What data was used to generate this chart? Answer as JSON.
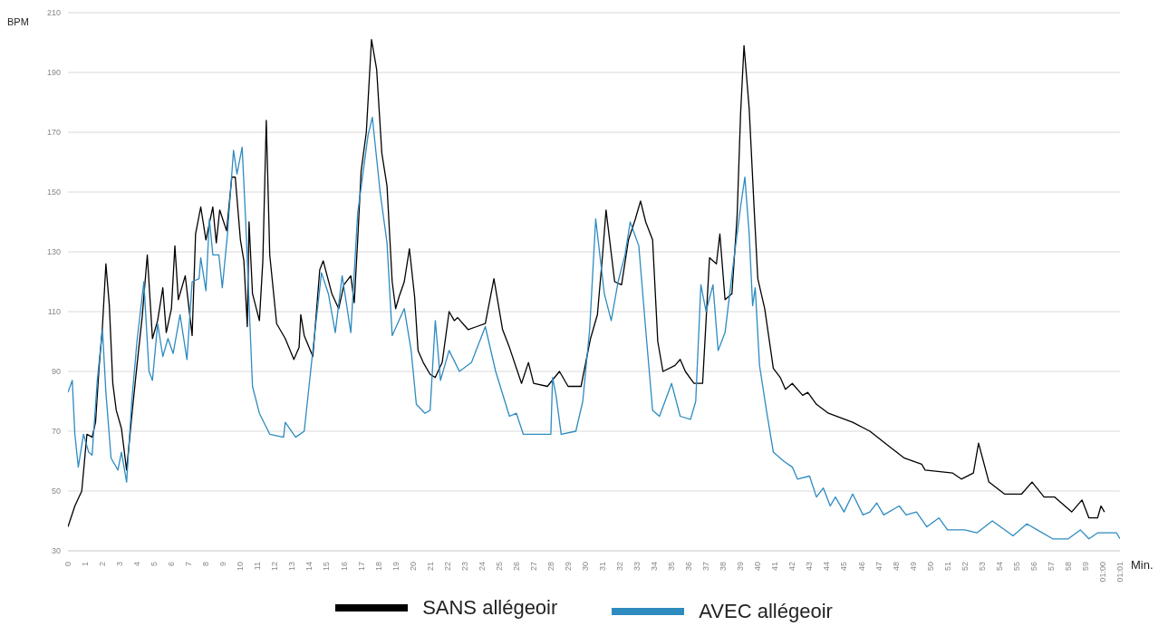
{
  "chart_data": {
    "type": "line",
    "ylabel": "BPM",
    "xlabel": "Min.",
    "xlim": [
      0,
      61
    ],
    "ylim": [
      30,
      210
    ],
    "xticks": [
      0,
      1,
      2,
      3,
      4,
      5,
      6,
      7,
      8,
      9,
      10,
      11,
      12,
      13,
      14,
      15,
      16,
      17,
      18,
      19,
      20,
      21,
      22,
      23,
      24,
      25,
      26,
      27,
      28,
      29,
      30,
      31,
      32,
      33,
      34,
      35,
      36,
      37,
      38,
      39,
      40,
      41,
      42,
      43,
      44,
      45,
      46,
      47,
      48,
      49,
      50,
      51,
      52,
      53,
      54,
      55,
      56,
      57,
      58,
      59,
      {
        "value": 60,
        "label": "01:00"
      },
      {
        "value": 61,
        "label": "01:01"
      }
    ],
    "yticks": [
      30,
      50,
      70,
      90,
      110,
      130,
      150,
      170,
      190,
      210
    ],
    "grid": "y",
    "legend": "bottom",
    "marker": "none",
    "line_style": "solid",
    "series": [
      {
        "name": "SANS allégeoir",
        "color": "#000000",
        "x": [
          0,
          0.4,
          0.8,
          1.1,
          1.4,
          1.6,
          1.8,
          2.0,
          2.2,
          2.4,
          2.6,
          2.8,
          3.1,
          3.4,
          3.7,
          4.0,
          4.3,
          4.6,
          4.9,
          5.2,
          5.5,
          5.7,
          6.0,
          6.2,
          6.4,
          6.8,
          7.2,
          7.4,
          7.7,
          8.0,
          8.4,
          8.6,
          8.8,
          9.2,
          9.5,
          9.7,
          10.0,
          10.2,
          10.4,
          10.5,
          10.7,
          11.1,
          11.3,
          11.5,
          11.7,
          12.1,
          12.6,
          13.1,
          13.4,
          13.5,
          13.7,
          14.2,
          14.6,
          14.8,
          15.3,
          15.7,
          16.0,
          16.4,
          16.6,
          16.8,
          17.0,
          17.3,
          17.6,
          17.9,
          18.2,
          18.5,
          18.8,
          19.0,
          19.2,
          19.5,
          19.8,
          20.1,
          20.3,
          20.6,
          21.0,
          21.3,
          21.7,
          22.1,
          22.4,
          22.6,
          23.2,
          23.7,
          24.2,
          24.7,
          25.2,
          25.6,
          26.3,
          26.7,
          27.0,
          27.8,
          28.5,
          29.0,
          29.75,
          30.3,
          30.7,
          31.0,
          31.2,
          31.7,
          32.1,
          32.5,
          32.9,
          33.2,
          33.5,
          33.9,
          34.2,
          34.5,
          35.2,
          35.5,
          35.8,
          36.3,
          36.8,
          37.0,
          37.2,
          37.6,
          37.8,
          38.1,
          38.5,
          38.8,
          39.0,
          39.2,
          39.5,
          39.8,
          40.0,
          40.4,
          40.9,
          41.3,
          41.6,
          42.0,
          42.6,
          42.9,
          43.4,
          44.1,
          45.5,
          46.5,
          47.6,
          48.5,
          49.5,
          49.7,
          51.3,
          51.8,
          52.5,
          52.8,
          53.4,
          54.3,
          55.3,
          55.9,
          56.6,
          57.2,
          58.2,
          58.8,
          59.2,
          59.7,
          59.9,
          60.1
        ],
        "values": [
          38,
          45,
          50,
          69,
          68,
          73,
          91,
          105,
          126,
          112,
          86,
          77,
          71,
          57,
          75,
          92,
          108,
          129,
          101,
          107,
          118,
          103,
          111,
          132,
          114,
          122,
          102,
          136,
          145,
          134,
          145,
          133,
          144,
          137,
          155,
          155,
          134,
          127,
          105,
          140,
          116,
          107,
          127,
          174,
          129,
          106,
          101,
          94,
          98,
          109,
          102,
          95,
          124,
          127,
          116,
          111,
          119,
          122,
          113,
          134,
          157,
          170,
          201,
          191,
          163,
          152,
          120,
          111,
          115,
          120,
          131,
          115,
          97,
          93,
          89,
          88,
          93,
          110,
          107,
          108,
          104,
          105,
          106,
          121,
          104,
          98,
          86,
          93,
          86,
          85,
          90,
          85,
          85,
          101,
          109,
          129,
          144,
          120,
          119,
          134,
          141,
          147,
          140,
          134,
          100,
          90,
          92,
          94,
          90,
          86,
          86,
          107,
          128,
          126,
          136,
          114,
          116,
          142,
          176,
          199,
          178,
          143,
          121,
          111,
          91,
          88,
          84,
          86,
          82,
          83,
          79,
          76,
          73,
          70,
          65,
          61,
          59,
          57,
          56,
          54,
          56,
          66,
          53,
          49,
          49,
          53,
          48,
          48,
          43,
          47,
          41,
          41,
          45,
          43
        ]
      },
      {
        "name": "AVEC allégeoir",
        "color": "#2e8bc0",
        "x": [
          0,
          0.25,
          0.4,
          0.6,
          0.9,
          1.2,
          1.4,
          1.7,
          2.0,
          2.2,
          2.5,
          2.9,
          3.1,
          3.4,
          3.7,
          4.0,
          4.4,
          4.7,
          4.9,
          5.2,
          5.5,
          5.8,
          6.1,
          6.5,
          6.9,
          7.2,
          7.6,
          7.7,
          8.0,
          8.2,
          8.4,
          8.75,
          8.95,
          9.25,
          9.6,
          9.8,
          10.1,
          10.3,
          10.7,
          11.1,
          11.7,
          12.5,
          12.6,
          13.2,
          13.7,
          14.2,
          14.7,
          15.1,
          15.5,
          15.9,
          16.4,
          16.8,
          17.4,
          17.65,
          18.1,
          18.5,
          18.8,
          19.5,
          19.9,
          20.2,
          20.7,
          21.0,
          21.3,
          21.6,
          22.1,
          22.7,
          23.4,
          24.2,
          24.8,
          25.6,
          26.0,
          26.4,
          27.2,
          28.0,
          28.1,
          28.3,
          28.6,
          29.45,
          29.85,
          30.25,
          30.6,
          31.1,
          31.5,
          31.9,
          32.3,
          32.6,
          33.1,
          33.5,
          33.9,
          34.3,
          35.0,
          35.5,
          36.1,
          36.4,
          36.7,
          37.0,
          37.4,
          37.7,
          38.1,
          38.6,
          39.0,
          39.25,
          39.5,
          39.7,
          39.85,
          40.1,
          40.5,
          40.9,
          41.5,
          42.0,
          42.3,
          43.0,
          43.4,
          43.8,
          44.2,
          44.5,
          45.0,
          45.5,
          46.1,
          46.5,
          46.9,
          47.3,
          48.2,
          48.6,
          49.2,
          49.8,
          50.5,
          51.0,
          52.0,
          52.7,
          53.6,
          54.8,
          55.6,
          56.2,
          57.1,
          58.0,
          58.7,
          59.2,
          59.7,
          60.4,
          60.8,
          61.0
        ],
        "values": [
          83,
          87,
          69,
          58,
          69,
          63,
          62,
          87,
          104,
          83,
          61,
          57,
          63,
          53,
          80,
          100,
          120,
          90,
          87,
          106,
          95,
          101,
          96,
          109,
          94,
          120,
          121,
          128,
          117,
          141,
          129,
          129,
          118,
          136,
          164,
          156,
          165,
          141,
          85,
          76,
          69,
          68,
          73,
          68,
          70,
          97,
          123,
          116,
          103,
          122,
          103,
          143,
          169,
          175,
          150,
          133,
          102,
          111,
          97,
          79,
          76,
          77,
          107,
          87,
          97,
          90,
          93,
          105,
          90,
          75,
          76,
          69,
          69,
          69,
          88,
          82,
          69,
          70,
          80,
          104,
          141,
          116,
          107,
          120,
          129,
          140,
          132,
          104,
          77,
          75,
          86,
          75,
          74,
          80,
          119,
          110,
          119,
          97,
          103,
          127,
          145,
          155,
          136,
          112,
          118,
          92,
          77,
          63,
          60,
          58,
          54,
          55,
          48,
          51,
          45,
          48,
          43,
          49,
          42,
          43,
          46,
          42,
          45,
          42,
          43,
          38,
          41,
          37,
          37,
          36,
          40,
          35,
          39,
          37,
          34,
          34,
          37,
          34,
          36,
          36,
          36,
          34
        ]
      }
    ]
  }
}
